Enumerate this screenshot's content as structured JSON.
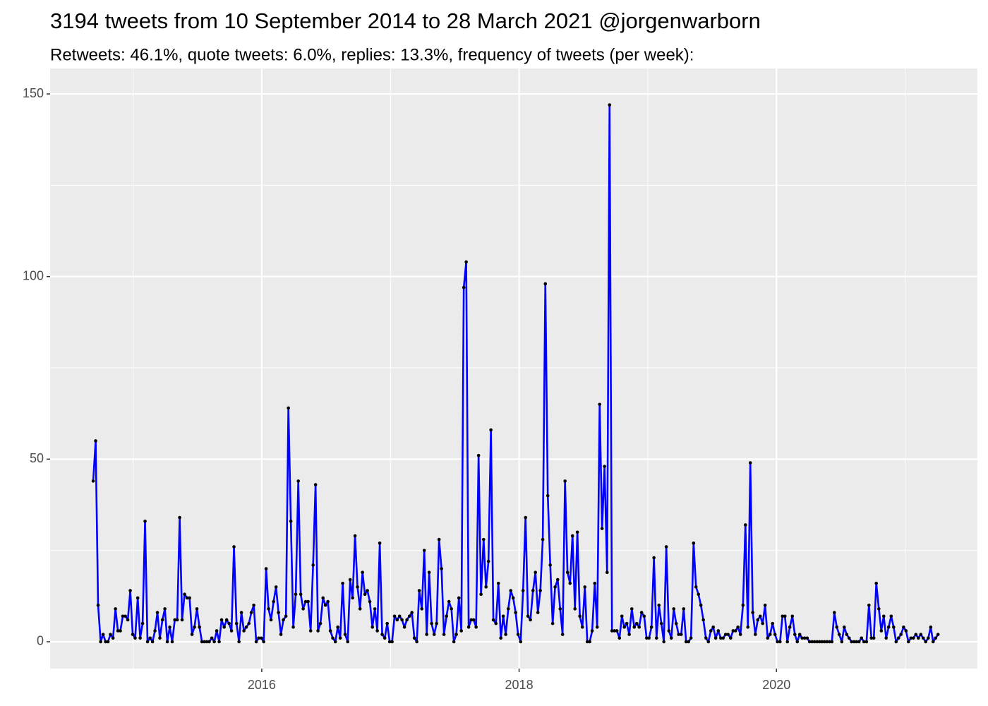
{
  "chart_data": {
    "type": "line",
    "title": "3194 tweets from 10 September 2014 to 28 March 2021 @jorgenwarborn",
    "subtitle": "Retweets: 46.1%, quote tweets: 6.0%, replies: 13.3%, frequency of tweets (per week):",
    "color": "#0000ff",
    "marker_color": "#000000",
    "grid": true,
    "background": "#ebebeb",
    "xlim": [
      2014.355,
      2021.562
    ],
    "xticks": [
      2016,
      2018,
      2020
    ],
    "ylim": [
      -7.35,
      156.97
    ],
    "yticks": [
      0,
      50,
      100,
      150
    ],
    "x": [
      2014.69,
      2014.709,
      2014.728,
      2014.748,
      2014.767,
      2014.786,
      2014.805,
      2014.824,
      2014.844,
      2014.863,
      2014.882,
      2014.901,
      2014.92,
      2014.94,
      2014.959,
      2014.978,
      2014.997,
      2015.016,
      2015.036,
      2015.055,
      2015.074,
      2015.093,
      2015.112,
      2015.132,
      2015.151,
      2015.17,
      2015.189,
      2015.208,
      2015.228,
      2015.247,
      2015.266,
      2015.285,
      2015.304,
      2015.324,
      2015.343,
      2015.362,
      2015.381,
      2015.4,
      2015.42,
      2015.439,
      2015.458,
      2015.477,
      2015.496,
      2015.516,
      2015.535,
      2015.554,
      2015.573,
      2015.592,
      2015.612,
      2015.631,
      2015.65,
      2015.669,
      2015.688,
      2015.708,
      2015.727,
      2015.746,
      2015.765,
      2015.784,
      2015.804,
      2015.823,
      2015.842,
      2015.861,
      2015.88,
      2015.9,
      2015.919,
      2015.938,
      2015.957,
      2015.976,
      2015.996,
      2016.015,
      2016.034,
      2016.053,
      2016.072,
      2016.092,
      2016.111,
      2016.13,
      2016.149,
      2016.168,
      2016.188,
      2016.207,
      2016.226,
      2016.245,
      2016.264,
      2016.284,
      2016.303,
      2016.322,
      2016.341,
      2016.36,
      2016.38,
      2016.399,
      2016.418,
      2016.437,
      2016.456,
      2016.476,
      2016.495,
      2016.514,
      2016.533,
      2016.552,
      2016.572,
      2016.591,
      2016.61,
      2016.629,
      2016.648,
      2016.668,
      2016.687,
      2016.706,
      2016.725,
      2016.744,
      2016.764,
      2016.783,
      2016.802,
      2016.821,
      2016.84,
      2016.86,
      2016.879,
      2016.898,
      2016.917,
      2016.936,
      2016.956,
      2016.975,
      2016.994,
      2017.013,
      2017.032,
      2017.052,
      2017.071,
      2017.09,
      2017.109,
      2017.128,
      2017.148,
      2017.167,
      2017.186,
      2017.205,
      2017.224,
      2017.244,
      2017.263,
      2017.282,
      2017.301,
      2017.32,
      2017.34,
      2017.359,
      2017.378,
      2017.397,
      2017.416,
      2017.436,
      2017.455,
      2017.474,
      2017.493,
      2017.512,
      2017.532,
      2017.551,
      2017.57,
      2017.589,
      2017.608,
      2017.628,
      2017.647,
      2017.666,
      2017.685,
      2017.704,
      2017.724,
      2017.743,
      2017.762,
      2017.781,
      2017.8,
      2017.82,
      2017.839,
      2017.858,
      2017.877,
      2017.896,
      2017.916,
      2017.935,
      2017.954,
      2017.973,
      2017.992,
      2018.012,
      2018.031,
      2018.05,
      2018.069,
      2018.088,
      2018.108,
      2018.127,
      2018.146,
      2018.165,
      2018.184,
      2018.204,
      2018.223,
      2018.242,
      2018.261,
      2018.28,
      2018.3,
      2018.319,
      2018.338,
      2018.357,
      2018.376,
      2018.396,
      2018.415,
      2018.434,
      2018.453,
      2018.472,
      2018.492,
      2018.511,
      2018.53,
      2018.549,
      2018.568,
      2018.588,
      2018.607,
      2018.626,
      2018.645,
      2018.664,
      2018.684,
      2018.703,
      2018.722,
      2018.741,
      2018.76,
      2018.78,
      2018.799,
      2018.818,
      2018.837,
      2018.856,
      2018.876,
      2018.895,
      2018.914,
      2018.933,
      2018.952,
      2018.972,
      2018.991,
      2019.01,
      2019.029,
      2019.048,
      2019.068,
      2019.087,
      2019.106,
      2019.125,
      2019.144,
      2019.164,
      2019.183,
      2019.202,
      2019.221,
      2019.24,
      2019.26,
      2019.279,
      2019.298,
      2019.317,
      2019.336,
      2019.356,
      2019.375,
      2019.394,
      2019.413,
      2019.432,
      2019.452,
      2019.471,
      2019.49,
      2019.509,
      2019.528,
      2019.548,
      2019.567,
      2019.586,
      2019.605,
      2019.624,
      2019.644,
      2019.663,
      2019.682,
      2019.701,
      2019.72,
      2019.74,
      2019.759,
      2019.778,
      2019.797,
      2019.816,
      2019.836,
      2019.855,
      2019.874,
      2019.893,
      2019.912,
      2019.932,
      2019.951,
      2019.97,
      2019.989,
      2020.008,
      2020.028,
      2020.047,
      2020.066,
      2020.085,
      2020.104,
      2020.124,
      2020.143,
      2020.162,
      2020.181,
      2020.2,
      2020.22,
      2020.239,
      2020.258,
      2020.277,
      2020.296,
      2020.316,
      2020.335,
      2020.354,
      2020.373,
      2020.392,
      2020.412,
      2020.431,
      2020.45,
      2020.469,
      2020.488,
      2020.508,
      2020.527,
      2020.546,
      2020.565,
      2020.584,
      2020.604,
      2020.623,
      2020.642,
      2020.661,
      2020.68,
      2020.7,
      2020.719,
      2020.738,
      2020.757,
      2020.776,
      2020.796,
      2020.815,
      2020.834,
      2020.853,
      2020.872,
      2020.892,
      2020.911,
      2020.93,
      2020.949,
      2020.968,
      2020.988,
      2021.007,
      2021.026,
      2021.045,
      2021.064,
      2021.084,
      2021.103,
      2021.122,
      2021.141,
      2021.16,
      2021.18,
      2021.199,
      2021.218,
      2021.237,
      2021.256
    ],
    "values": [
      44,
      55,
      10,
      0,
      2,
      0,
      0,
      2,
      1,
      9,
      3,
      3,
      7,
      7,
      6,
      14,
      2,
      1,
      12,
      1,
      5,
      33,
      0,
      1,
      0,
      3,
      8,
      1,
      6,
      9,
      0,
      4,
      0,
      6,
      6,
      34,
      6,
      13,
      12,
      12,
      2,
      4,
      9,
      4,
      0,
      0,
      0,
      0,
      1,
      0,
      3,
      0,
      6,
      4,
      6,
      5,
      3,
      26,
      5,
      0,
      8,
      3,
      4,
      5,
      8,
      10,
      0,
      1,
      1,
      0,
      20,
      9,
      6,
      11,
      15,
      8,
      2,
      6,
      7,
      64,
      33,
      4,
      13,
      44,
      13,
      9,
      11,
      11,
      3,
      21,
      43,
      3,
      5,
      12,
      10,
      11,
      3,
      1,
      0,
      4,
      1,
      16,
      2,
      0,
      17,
      12,
      29,
      15,
      9,
      19,
      13,
      14,
      11,
      4,
      9,
      3,
      27,
      2,
      1,
      5,
      0,
      0,
      7,
      6,
      7,
      6,
      4,
      6,
      7,
      8,
      1,
      0,
      14,
      9,
      25,
      2,
      19,
      5,
      2,
      5,
      28,
      20,
      2,
      7,
      11,
      9,
      0,
      2,
      12,
      3,
      97,
      104,
      4,
      6,
      6,
      4,
      51,
      13,
      28,
      15,
      22,
      58,
      6,
      5,
      16,
      1,
      7,
      2,
      9,
      14,
      12,
      8,
      2,
      0,
      14,
      34,
      7,
      6,
      14,
      19,
      8,
      14,
      28,
      98,
      40,
      21,
      5,
      15,
      17,
      9,
      2,
      44,
      19,
      16,
      29,
      9,
      30,
      7,
      4,
      15,
      0,
      0,
      3,
      16,
      4,
      65,
      31,
      48,
      19,
      147,
      3,
      3,
      3,
      1,
      7,
      4,
      5,
      2,
      9,
      4,
      5,
      4,
      8,
      7,
      1,
      1,
      4,
      23,
      1,
      10,
      5,
      0,
      26,
      3,
      1,
      9,
      5,
      2,
      2,
      9,
      0,
      0,
      1,
      27,
      15,
      13,
      10,
      6,
      1,
      0,
      3,
      4,
      1,
      3,
      1,
      1,
      2,
      2,
      1,
      3,
      3,
      4,
      2,
      10,
      32,
      4,
      49,
      8,
      2,
      6,
      7,
      5,
      10,
      1,
      2,
      5,
      2,
      0,
      0,
      7,
      7,
      0,
      4,
      7,
      2,
      0,
      2,
      1,
      1,
      1,
      0,
      0,
      0,
      0,
      0,
      0,
      0,
      0,
      0,
      0,
      8,
      4,
      2,
      0,
      4,
      2,
      1,
      0,
      0,
      0,
      0,
      1,
      0,
      0,
      10,
      1,
      1,
      16,
      9,
      3,
      7,
      1,
      4,
      7,
      4,
      0,
      1,
      2,
      4,
      3,
      0,
      1,
      1,
      2,
      1,
      2,
      1,
      0,
      1,
      4,
      0,
      1,
      2
    ]
  }
}
